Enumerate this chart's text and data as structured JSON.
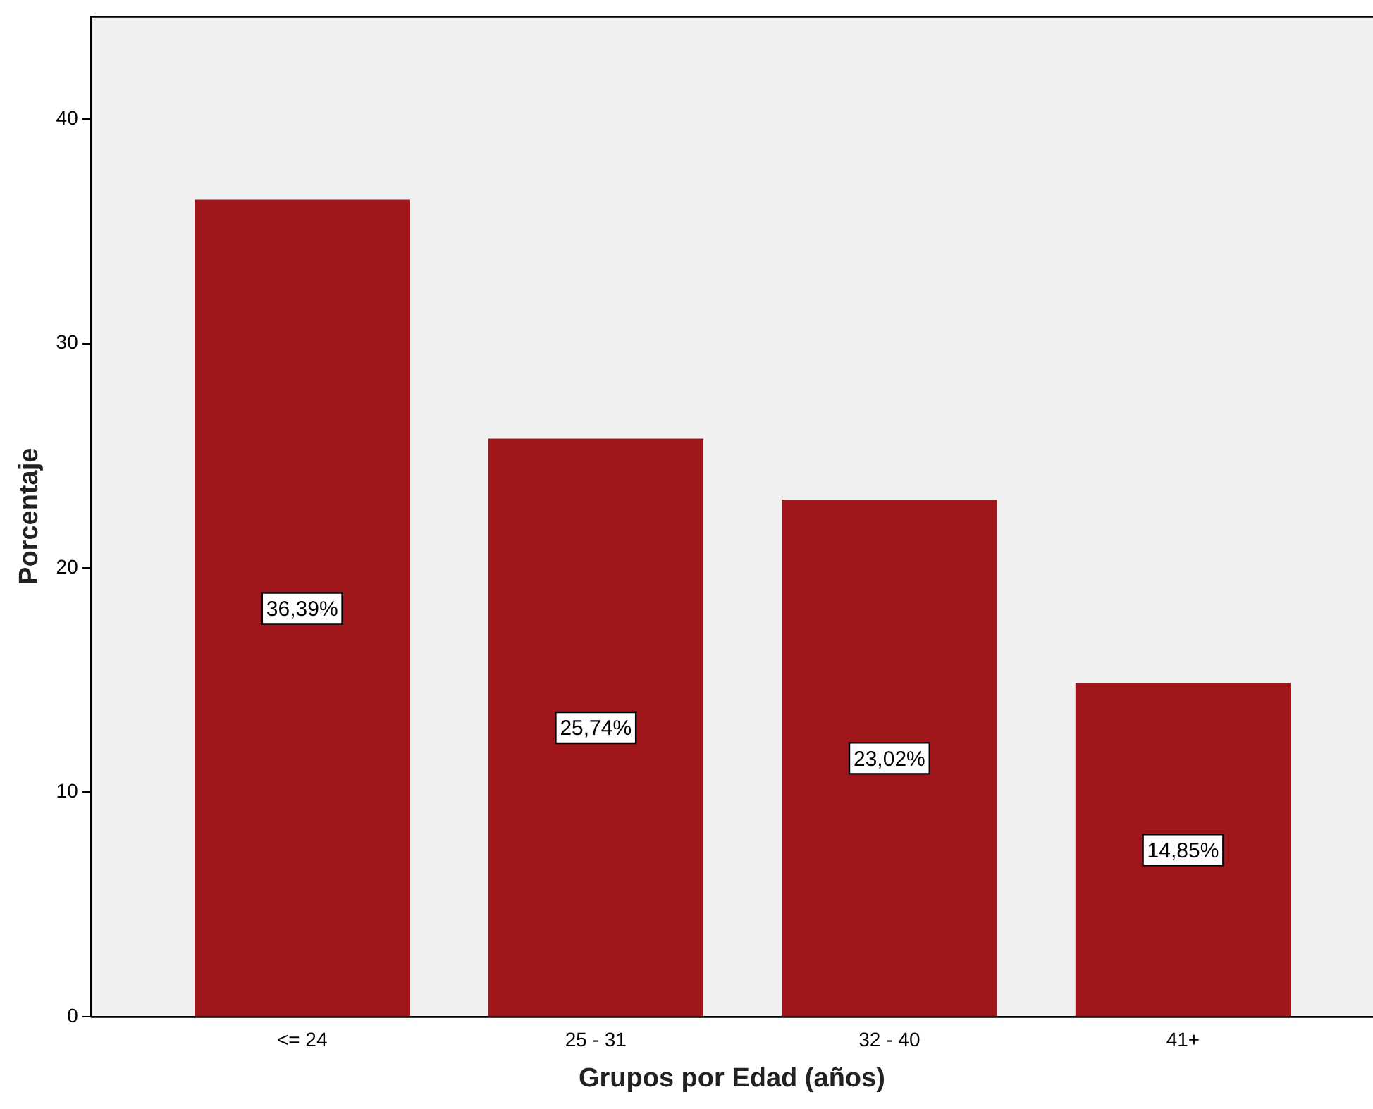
{
  "chart_data": {
    "type": "bar",
    "xlabel": "Grupos por Edad (años)",
    "ylabel": "Porcentaje",
    "categories": [
      "<= 24",
      "25 - 31",
      "32 - 40",
      "41+"
    ],
    "values": [
      36.39,
      25.74,
      23.02,
      14.85
    ],
    "value_labels": [
      "36,39%",
      "25,74%",
      "23,02%",
      "14,85%"
    ],
    "color": "#a0161a",
    "ylim": [
      0,
      44.6
    ],
    "yticks": [
      0,
      10,
      20,
      30,
      40
    ],
    "grid": false,
    "legend": false
  }
}
